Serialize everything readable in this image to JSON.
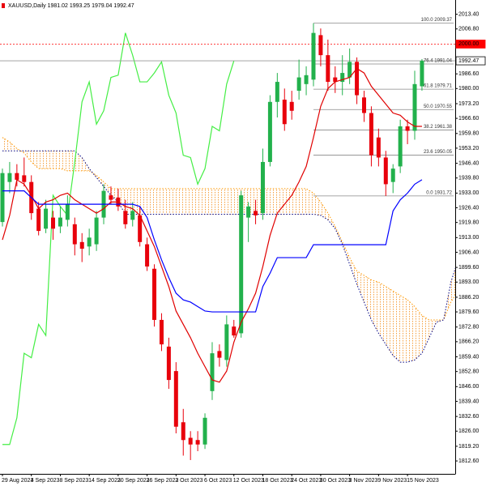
{
  "chart_data": {
    "type": "candlestick",
    "title": "XAUUSD,Daily  1981.02 1993.25 1979.04 1992.47",
    "categories": [
      "29 Aug 2023",
      null,
      null,
      null,
      "4 Sep 2023",
      null,
      null,
      null,
      "8 Sep 2023",
      null,
      null,
      null,
      "14 Sep 2023",
      null,
      null,
      null,
      "20 Sep 2023",
      null,
      null,
      null,
      "26 Sep 2023",
      null,
      null,
      null,
      "2 Oct 2023",
      null,
      null,
      null,
      "6 Oct 2023",
      null,
      null,
      null,
      "12 Oct 2023",
      null,
      null,
      null,
      "18 Oct 2023",
      null,
      null,
      null,
      "24 Oct 2023",
      null,
      null,
      null,
      "30 Oct 2023",
      null,
      null,
      null,
      "3 Nov 2023",
      null,
      null,
      null,
      "9 Nov 2023",
      null,
      null,
      null,
      "15 Nov 2023",
      null,
      null,
      null,
      null,
      null,
      null,
      null
    ],
    "open": [
      1920,
      1938,
      1942,
      1941,
      1938,
      1926,
      1917,
      1922,
      1918,
      1921,
      1919,
      1911,
      1909,
      1910,
      1922,
      1932,
      1931,
      1925,
      1921,
      1923,
      1910,
      1899,
      1876,
      1864,
      1853,
      1830,
      1823,
      1822,
      1820,
      1844,
      1862,
      1858,
      1873,
      1870,
      1922,
      1925,
      1924,
      1947,
      1974,
      1975,
      1974,
      1979,
      1982,
      1984,
      2004,
      1995,
      1985,
      1983,
      1985,
      1992,
      1976,
      1969,
      1958,
      1949,
      1938,
      1945,
      1963,
      1961,
      1981.02,
      null,
      null,
      null,
      null,
      null
    ],
    "high": [
      1944,
      1947,
      1946,
      1949,
      1941,
      1929,
      1930,
      1925,
      1927,
      1932,
      1922,
      1915,
      1917,
      1925,
      1937,
      1936,
      1935,
      1930,
      1929,
      1927,
      1913,
      1901,
      1879,
      1868,
      1857,
      1836,
      1826,
      1826,
      1834,
      1866,
      1865,
      1878,
      1876,
      1934,
      1929,
      1930,
      1953,
      1977,
      1987,
      1980,
      1979,
      1993,
      1990,
      2009.37,
      2007,
      2002,
      1990,
      1995,
      1998,
      1994,
      1979,
      1972,
      1962,
      1952,
      1946,
      1966,
      1966,
      1988,
      1993.25,
      null,
      null,
      null,
      null,
      null
    ],
    "low": [
      1918,
      1933,
      1936,
      1936,
      1921,
      1914,
      1915,
      1912,
      1915,
      1918,
      1905,
      1902,
      1905,
      1907,
      1919,
      1928,
      1925,
      1917,
      1918,
      1909,
      1898,
      1873,
      1862,
      1845,
      1825,
      1815,
      1813,
      1817,
      1818,
      1840,
      1855,
      1855,
      1868,
      1868,
      1911,
      1919,
      1921,
      1945,
      1967,
      1961,
      1966,
      1975,
      1977,
      1981,
      1990,
      1979,
      1978,
      1977,
      1982,
      1973,
      1965,
      1945,
      1945,
      1931.72,
      1933,
      1942,
      1955,
      1957,
      1979.04,
      null,
      null,
      null,
      null,
      null
    ],
    "close": [
      1942,
      1942,
      1939,
      1938,
      1924,
      1916,
      1926,
      1917,
      1922,
      1928,
      1910,
      1908,
      1913,
      1922,
      1934,
      1930,
      1927,
      1919,
      1925,
      1911,
      1900,
      1876,
      1865,
      1849,
      1828,
      1822,
      1820,
      1820,
      1832,
      1861,
      1859,
      1874,
      1869,
      1932,
      1927,
      1923,
      1947,
      1974,
      1983,
      1964,
      1970,
      1985,
      1986,
      2005,
      1995,
      1983,
      1983,
      1987,
      1992,
      1977,
      1969,
      1950,
      1949,
      1937,
      1944,
      1963,
      1961,
      1982,
      1992.47,
      null,
      null,
      null,
      null,
      null
    ],
    "up_color": "#22b14c",
    "down_color": "#e8000b",
    "series": [
      {
        "color": "#e00000",
        "style": "solid",
        "values": [
          1912,
          1923,
          1939,
          1937,
          1932,
          1926,
          1929,
          1930,
          1932,
          1933,
          1930,
          1928,
          1926,
          1924,
          1926,
          1929,
          1929,
          1927,
          1926,
          1923,
          1916,
          1909,
          1900,
          1891,
          1880,
          1874,
          1868,
          1861,
          1855,
          1849,
          1848,
          1853,
          1866,
          1875,
          1881,
          1888,
          1900,
          1914,
          1924,
          1928,
          1932,
          1938,
          1945,
          1958,
          1972,
          1980,
          1983,
          1984,
          1985,
          1989,
          1987,
          1981,
          1977,
          1973,
          1969,
          1968,
          1965,
          1963,
          1963,
          null,
          null,
          null,
          null,
          null
        ]
      },
      {
        "color": "#0000ff",
        "style": "solid",
        "values": [
          1934,
          1934,
          1934,
          1934,
          1931,
          1928,
          1928,
          1928,
          1928,
          1928,
          1928,
          1928,
          1928,
          1928,
          1928,
          1928,
          1928,
          1928,
          1928,
          1927,
          1922,
          1912,
          1903,
          1895,
          1888,
          1885,
          1884,
          1882,
          1880,
          1879.6,
          1879.6,
          1879.6,
          1879.6,
          1879.6,
          1879.6,
          1879.6,
          1891,
          1897,
          1904,
          1904,
          1904,
          1904,
          1904,
          1909.8,
          1909.8,
          1909.8,
          1909.8,
          1909.8,
          1909.8,
          1909.8,
          1909.8,
          1909.8,
          1909.8,
          1909.8,
          1925,
          1930,
          1933,
          1937,
          1939,
          null,
          null,
          null,
          null,
          null
        ]
      },
      {
        "color": "#44ee44",
        "style": "solid",
        "values": [
          1820,
          1820,
          1832,
          1861,
          1859,
          1874,
          1869,
          1932,
          1927,
          1923,
          1947,
          1974,
          1983,
          1964,
          1970,
          1985,
          1986,
          2005,
          1995,
          1983,
          1983,
          1987,
          1992,
          1977,
          1969,
          1950,
          1949,
          1937,
          1944,
          1963,
          1961,
          1982,
          1992.47,
          null,
          null,
          null,
          null,
          null,
          null,
          null,
          null,
          null,
          null,
          null,
          null,
          null,
          null,
          null,
          null,
          null,
          null,
          null,
          null,
          null,
          null,
          null,
          null,
          null,
          null,
          null,
          null,
          null,
          null,
          null
        ]
      },
      {
        "color": "#ff9900",
        "style": "dotted",
        "values": [
          1958,
          1956,
          1953,
          1951,
          1947,
          1944,
          1944,
          1944,
          1944,
          1943,
          1943,
          1943,
          1943,
          1941,
          1938,
          1935,
          1935,
          1935,
          1935,
          1935,
          1935,
          1935,
          1935,
          1935,
          1935,
          1935,
          1935,
          1935,
          1935,
          1935,
          1935,
          1935,
          1935,
          1935,
          1935,
          1935,
          1935,
          1935,
          1935,
          1935,
          1935,
          1935,
          1935,
          1933,
          1929,
          1924,
          1918,
          1911,
          1904,
          1898,
          1896,
          1894,
          1893,
          1891,
          1889,
          1887,
          1885,
          1882,
          1878,
          1876,
          1876,
          1876,
          1884,
          1889
        ]
      },
      {
        "color": "#000080",
        "style": "dotted",
        "values": [
          1952,
          1952,
          1952,
          1952,
          1952,
          1952,
          1952,
          1952,
          1952,
          1952,
          1952,
          1949,
          1944,
          1940,
          1936,
          1932,
          1929,
          1923.5,
          1923.5,
          1923.5,
          1923.5,
          1923.5,
          1923.5,
          1923.5,
          1923.5,
          1923.5,
          1923.5,
          1923.5,
          1923.5,
          1923.5,
          1923.5,
          1923.5,
          1923.5,
          1923.5,
          1923.5,
          1923.5,
          1923.5,
          1923.5,
          1923.5,
          1923.5,
          1923.5,
          1923.5,
          1923.5,
          1923.5,
          1923,
          1921,
          1917,
          1910,
          1901,
          1892,
          1884,
          1876,
          1870,
          1865,
          1860,
          1857,
          1857,
          1858,
          1861,
          1868,
          1875,
          1876,
          1893,
          1903
        ]
      }
    ],
    "fibonacci": [
      {
        "value": 2009.37,
        "label": "100.0 2009.37"
      },
      {
        "value": 1991.04,
        "label": "76.4 1991.04"
      },
      {
        "value": 1979.71,
        "label": "61.8 1979.71"
      },
      {
        "value": 1970.55,
        "label": "50.0 1970.55"
      },
      {
        "value": 1961.38,
        "label": "38.2 1961.38"
      },
      {
        "value": 1950.05,
        "label": "23.6 1950.05"
      },
      {
        "value": 1931.72,
        "label": "0.0 1931.72"
      }
    ],
    "price_lines": [
      {
        "value": 2000,
        "label": "2000.00",
        "color": "#ff0000"
      },
      {
        "value": 1992.47,
        "label": "1992.47",
        "color": "#999999"
      }
    ],
    "ylim": [
      1806.8,
      2019.8
    ],
    "yticks": [
      {
        "value": 1812.6,
        "label": "1812.60"
      },
      {
        "value": 1819.2,
        "label": "1819.20"
      },
      {
        "value": 1826,
        "label": "1826.00"
      },
      {
        "value": 1832.6,
        "label": "1832.60"
      },
      {
        "value": 1839.4,
        "label": "1839.40"
      },
      {
        "value": 1846,
        "label": "1846.00"
      },
      {
        "value": 1852.8,
        "label": "1852.80"
      },
      {
        "value": 1859.4,
        "label": "1859.40"
      },
      {
        "value": 1866.2,
        "label": "1866.20"
      },
      {
        "value": 1872.8,
        "label": "1872.80"
      },
      {
        "value": 1879.6,
        "label": "1879.60"
      },
      {
        "value": 1886.2,
        "label": "1886.20"
      },
      {
        "value": 1893,
        "label": "1893.00"
      },
      {
        "value": 1899.6,
        "label": "1899.60"
      },
      {
        "value": 1906.4,
        "label": "1906.40"
      },
      {
        "value": 1913,
        "label": "1913.00"
      },
      {
        "value": 1919.8,
        "label": "1919.80"
      },
      {
        "value": 1926.4,
        "label": "1926.40"
      },
      {
        "value": 1933,
        "label": "1933.00"
      },
      {
        "value": 1939.8,
        "label": "1939.80"
      },
      {
        "value": 1946.4,
        "label": "1946.40"
      },
      {
        "value": 1953.2,
        "label": "1953.20"
      },
      {
        "value": 1959.8,
        "label": "1959.80"
      },
      {
        "value": 1966.6,
        "label": "1966.60"
      },
      {
        "value": 1973.2,
        "label": "1973.20"
      },
      {
        "value": 1980,
        "label": "1980.00"
      },
      {
        "value": 1986.6,
        "label": "1986.60"
      },
      {
        "value": 2006.8,
        "label": "2006.80"
      },
      {
        "value": 2013.4,
        "label": "2013.40"
      }
    ]
  }
}
